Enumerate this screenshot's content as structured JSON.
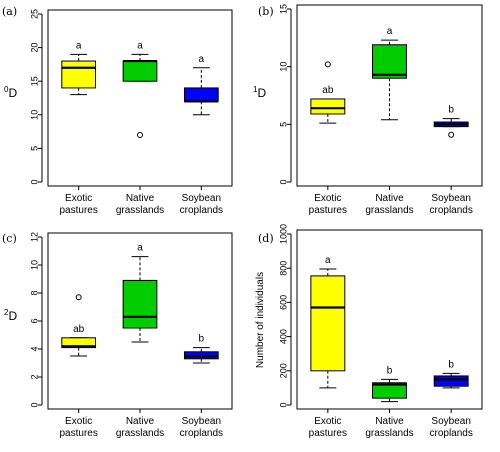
{
  "chart_data": [
    {
      "type": "boxplot",
      "panel_label": "(a)",
      "ylabel_sup": "0",
      "ylabel_main": "D",
      "ylabel": "",
      "ylim": [
        0,
        25
      ],
      "yticks": [
        0,
        5,
        10,
        15,
        20,
        25
      ],
      "categories": [
        "Exotic\npastures",
        "Native\ngrasslands",
        "Soybean\ncroplands"
      ],
      "boxes": [
        {
          "min": 13,
          "q1": 14,
          "median": 17,
          "q3": 18,
          "max": 19,
          "outliers": [],
          "color": "#ffff00",
          "letter": "a"
        },
        {
          "min": 15,
          "q1": 15,
          "median": 18,
          "q3": 18,
          "max": 19,
          "outliers": [
            7
          ],
          "color": "#00cc00",
          "letter": "a"
        },
        {
          "min": 10,
          "q1": 12,
          "median": 12,
          "q3": 14,
          "max": 17,
          "outliers": [],
          "color": "#0000ff",
          "letter": "a"
        }
      ]
    },
    {
      "type": "boxplot",
      "panel_label": "(b)",
      "ylabel_sup": "1",
      "ylabel_main": "D",
      "ylabel": "",
      "ylim": [
        0,
        15
      ],
      "yticks": [
        0,
        5,
        10,
        15
      ],
      "categories": [
        "Exotic\npastures",
        "Native\ngrasslands",
        "Soybean\ncroplands"
      ],
      "boxes": [
        {
          "min": 5.1,
          "q1": 5.9,
          "median": 6.4,
          "q3": 7.2,
          "max": 7.2,
          "outliers": [
            10.2
          ],
          "color": "#ffff00",
          "letter": "ab"
        },
        {
          "min": 5.4,
          "q1": 9.0,
          "median": 9.3,
          "q3": 11.9,
          "max": 12.3,
          "outliers": [],
          "color": "#00cc00",
          "letter": "a"
        },
        {
          "min": 4.8,
          "q1": 4.8,
          "median": 5.0,
          "q3": 5.2,
          "max": 5.5,
          "outliers": [
            4.1
          ],
          "color": "#0000ff",
          "letter": "b"
        }
      ]
    },
    {
      "type": "boxplot",
      "panel_label": "(c)",
      "ylabel_sup": "2",
      "ylabel_main": "D",
      "ylabel": "",
      "ylim": [
        0,
        12
      ],
      "yticks": [
        0,
        2,
        4,
        6,
        8,
        10,
        12
      ],
      "categories": [
        "Exotic\npastures",
        "Native\ngrasslands",
        "Soybean\ncroplands"
      ],
      "boxes": [
        {
          "min": 3.5,
          "q1": 4.1,
          "median": 4.2,
          "q3": 4.8,
          "max": 4.8,
          "outliers": [
            7.7
          ],
          "color": "#ffff00",
          "letter": "ab"
        },
        {
          "min": 4.5,
          "q1": 5.5,
          "median": 6.3,
          "q3": 8.9,
          "max": 10.6,
          "outliers": [],
          "color": "#00cc00",
          "letter": "a"
        },
        {
          "min": 3.0,
          "q1": 3.3,
          "median": 3.5,
          "q3": 3.8,
          "max": 4.1,
          "outliers": [],
          "color": "#0000ff",
          "letter": "b"
        }
      ]
    },
    {
      "type": "boxplot",
      "panel_label": "(d)",
      "ylabel_sup": "",
      "ylabel_main": "",
      "ylabel": "Number of individuals",
      "ylim": [
        0,
        1000
      ],
      "yticks": [
        0,
        200,
        400,
        600,
        800,
        1000
      ],
      "categories": [
        "Exotic\npastures",
        "Native\ngrasslands",
        "Soybean\ncroplands"
      ],
      "boxes": [
        {
          "min": 100,
          "q1": 200,
          "median": 570,
          "q3": 755,
          "max": 795,
          "outliers": [],
          "color": "#ffff00",
          "letter": "a"
        },
        {
          "min": 20,
          "q1": 40,
          "median": 120,
          "q3": 130,
          "max": 150,
          "outliers": [],
          "color": "#00cc00",
          "letter": "b"
        },
        {
          "min": 100,
          "q1": 110,
          "median": 150,
          "q3": 170,
          "max": 185,
          "outliers": [],
          "color": "#0000ff",
          "letter": "b"
        }
      ]
    }
  ]
}
